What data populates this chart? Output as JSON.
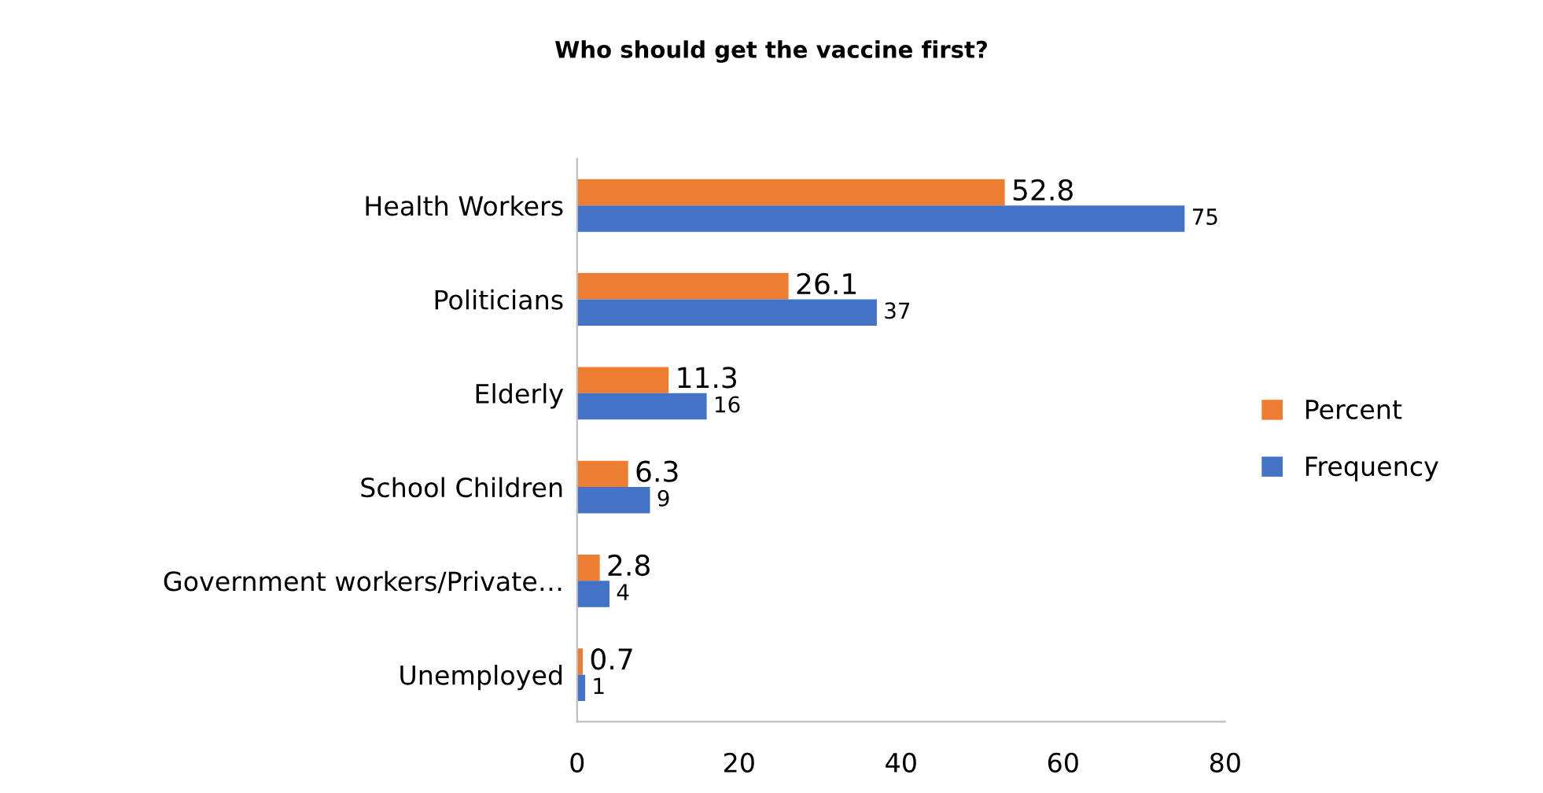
{
  "chart_data": {
    "type": "bar",
    "orientation": "horizontal",
    "title": "Who should get the vaccine first?",
    "categories": [
      "Health Workers",
      "Politicians",
      "Elderly",
      "School Children",
      "Government workers/Private…",
      "Unemployed"
    ],
    "series": [
      {
        "name": "Percent",
        "color": "#ed7d31",
        "values": [
          52.8,
          26.1,
          11.3,
          6.3,
          2.8,
          0.7
        ]
      },
      {
        "name": "Frequency",
        "color": "#4472c4",
        "values": [
          75,
          37,
          16,
          9,
          4,
          1
        ]
      }
    ],
    "xlim": [
      0,
      80
    ],
    "xticks": [
      0,
      20,
      40,
      60,
      80
    ],
    "grid": false,
    "legend": "right",
    "data_labels": true
  }
}
